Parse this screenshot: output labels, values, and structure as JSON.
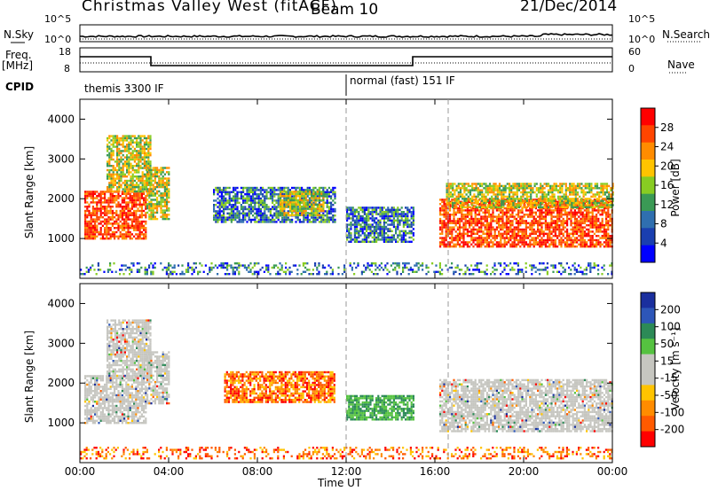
{
  "header": {
    "station": "Christmas Valley West (fitACF)",
    "beam": "Beam 10",
    "date": "21/Dec/2014"
  },
  "strip_panels": {
    "nsky_label": "N.Sky",
    "nsearch_label": "N.Search",
    "freq_label_1": "Freq.",
    "freq_label_2": "[MHz]",
    "nave_label": "Nave",
    "cpid_label": "CPID",
    "noise_left_ticks": [
      "10^5",
      "10^0"
    ],
    "noise_right_ticks": [
      "10^5",
      "10^0"
    ],
    "freq_left_ticks": [
      "18",
      "8"
    ],
    "freq_right_ticks": [
      "60",
      "0"
    ],
    "cpid_segments": [
      {
        "text": "themis 3300 IF",
        "start_hour": 0
      },
      {
        "text": "normal (fast) 151 IF",
        "start_hour": 12
      }
    ]
  },
  "x_axis": {
    "label": "Time UT",
    "ticks": [
      "00:00",
      "04:00",
      "08:00",
      "12:00",
      "16:00",
      "20:00",
      "00:00"
    ]
  },
  "colorbars": {
    "power": {
      "label": "Power [dB]",
      "ticks": [
        "28",
        "24",
        "20",
        "16",
        "12",
        "8",
        "4"
      ],
      "colors": [
        "#ff0000",
        "#ff4500",
        "#ff8c00",
        "#ffc400",
        "#88cc22",
        "#3a9a55",
        "#2f6fb0",
        "#1a3fb0",
        "#0000ff"
      ]
    },
    "velocity": {
      "label": "Velocity [m s⁻¹]",
      "ticks": [
        "200",
        "100",
        "50",
        "15",
        "-15",
        "-50",
        "-100",
        "-200"
      ],
      "colors": [
        "#1a2f9e",
        "#2d56b8",
        "#2c8a57",
        "#55c240",
        "#c6c6c0",
        "#c6c6c0",
        "#ffc400",
        "#ff8c00",
        "#ff5a00",
        "#ff0000"
      ]
    }
  },
  "chart_data": [
    {
      "type": "heatmap",
      "title": "Power [dB]",
      "xlabel": "Time UT",
      "ylabel": "Slant Range [km]",
      "xlim": [
        0,
        24
      ],
      "ylim": [
        0,
        4500
      ],
      "yticks": [
        1000,
        2000,
        3000,
        4000
      ],
      "ytick_labels": [
        "1000",
        "2000",
        "3000",
        "4000"
      ],
      "regions": [
        {
          "t0": 0.2,
          "t1": 3.0,
          "r0": 1000,
          "r1": 2200,
          "level": "high"
        },
        {
          "t0": 1.2,
          "t1": 3.2,
          "r0": 2200,
          "r1": 3600,
          "level": "mid"
        },
        {
          "t0": 3.0,
          "t1": 4.0,
          "r0": 1500,
          "r1": 2800,
          "level": "mid"
        },
        {
          "t0": 6.0,
          "t1": 11.5,
          "r0": 1400,
          "r1": 2300,
          "level": "low"
        },
        {
          "t0": 9.0,
          "t1": 11.0,
          "r0": 1600,
          "r1": 2200,
          "level": "mid"
        },
        {
          "t0": 12.0,
          "t1": 15.0,
          "r0": 900,
          "r1": 1800,
          "level": "low"
        },
        {
          "t0": 16.2,
          "t1": 24.0,
          "r0": 800,
          "r1": 2000,
          "level": "high"
        },
        {
          "t0": 16.5,
          "t1": 24.0,
          "r0": 1800,
          "r1": 2400,
          "level": "mid"
        },
        {
          "t0": 0.0,
          "t1": 24.0,
          "r0": 100,
          "r1": 400,
          "level": "low"
        }
      ]
    },
    {
      "type": "heatmap",
      "title": "Velocity [m s⁻¹]",
      "xlabel": "Time UT",
      "ylabel": "Slant Range [km]",
      "xlim": [
        0,
        24
      ],
      "ylim": [
        0,
        4500
      ],
      "yticks": [
        1000,
        2000,
        3000,
        4000
      ],
      "ytick_labels": [
        "1000",
        "2000",
        "3000",
        "4000"
      ],
      "regions": [
        {
          "t0": 0.2,
          "t1": 3.0,
          "r0": 1000,
          "r1": 2200,
          "level": "gray"
        },
        {
          "t0": 1.2,
          "t1": 3.2,
          "r0": 2200,
          "r1": 3600,
          "level": "gray"
        },
        {
          "t0": 3.0,
          "t1": 4.0,
          "r0": 1500,
          "r1": 2800,
          "level": "gray"
        },
        {
          "t0": 6.5,
          "t1": 11.5,
          "r0": 1500,
          "r1": 2300,
          "level": "negative"
        },
        {
          "t0": 12.0,
          "t1": 15.0,
          "r0": 1100,
          "r1": 1700,
          "level": "positive"
        },
        {
          "t0": 16.2,
          "t1": 24.0,
          "r0": 800,
          "r1": 2100,
          "level": "gray"
        },
        {
          "t0": 0.0,
          "t1": 24.0,
          "r0": 100,
          "r1": 400,
          "level": "negative"
        }
      ]
    }
  ]
}
